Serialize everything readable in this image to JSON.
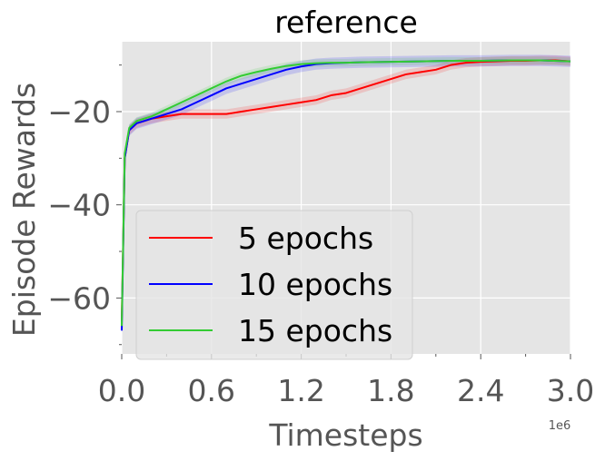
{
  "chart_data": {
    "type": "line",
    "title": "reference",
    "xlabel": "Timesteps",
    "ylabel": "Episode Rewards",
    "x_offset_label": "1e6",
    "xlim": [
      0,
      3.0
    ],
    "ylim": [
      -72,
      -5
    ],
    "xticks": [
      0.0,
      0.6,
      1.2,
      1.8,
      2.4,
      3.0
    ],
    "xtick_labels": [
      "0.0",
      "0.6",
      "1.2",
      "1.8",
      "2.4",
      "3.0"
    ],
    "yticks": [
      -60,
      -40,
      -20
    ],
    "ytick_labels": [
      "−60",
      "−40",
      "−20"
    ],
    "grid": true,
    "legend_position": "lower-left",
    "series": [
      {
        "name": "5 epochs",
        "color": "#ff0000",
        "band_color": "#ff0000",
        "x": [
          0,
          0.02,
          0.05,
          0.1,
          0.15,
          0.2,
          0.3,
          0.4,
          0.5,
          0.6,
          0.7,
          0.8,
          0.9,
          1.0,
          1.1,
          1.2,
          1.3,
          1.4,
          1.5,
          1.6,
          1.7,
          1.8,
          1.9,
          2.0,
          2.1,
          2.2,
          2.3,
          2.4,
          2.5,
          2.6,
          2.7,
          2.8,
          2.9,
          3.0
        ],
        "y": [
          -65,
          -30,
          -24,
          -22.5,
          -22,
          -21.5,
          -21,
          -20.5,
          -20.5,
          -20.5,
          -20.5,
          -20,
          -19.5,
          -19,
          -18.5,
          -18,
          -17.5,
          -16.5,
          -16,
          -15,
          -14,
          -13,
          -12,
          -11.5,
          -11,
          -10,
          -9.5,
          -9.3,
          -9.2,
          -9.1,
          -9.1,
          -9.0,
          -9.0,
          -9.2
        ],
        "band": 1.0
      },
      {
        "name": "10 epochs",
        "color": "#0000ff",
        "band_color": "#0000ff",
        "x": [
          0,
          0.02,
          0.05,
          0.1,
          0.15,
          0.2,
          0.3,
          0.4,
          0.5,
          0.6,
          0.7,
          0.8,
          0.9,
          1.0,
          1.1,
          1.2,
          1.3,
          1.4,
          1.5,
          1.6,
          1.8,
          2.0,
          2.2,
          2.4,
          2.6,
          2.8,
          3.0
        ],
        "y": [
          -67,
          -30,
          -24,
          -22.5,
          -22,
          -21.5,
          -20.5,
          -19.5,
          -18,
          -16.5,
          -15,
          -14,
          -13,
          -12,
          -11,
          -10.3,
          -9.8,
          -9.6,
          -9.5,
          -9.4,
          -9.3,
          -9.2,
          -9.1,
          -9.1,
          -9.0,
          -9.0,
          -9.2
        ],
        "band": 1.2
      },
      {
        "name": "15 epochs",
        "color": "#33cc33",
        "band_color": "#33cc33",
        "x": [
          0,
          0.02,
          0.05,
          0.1,
          0.15,
          0.2,
          0.3,
          0.4,
          0.5,
          0.6,
          0.7,
          0.8,
          0.9,
          1.0,
          1.1,
          1.2,
          1.3,
          1.4,
          1.5,
          1.6,
          1.8,
          2.0,
          2.2,
          2.4,
          2.6,
          2.8,
          3.0
        ],
        "y": [
          -66,
          -29,
          -23.5,
          -22,
          -21.5,
          -21,
          -19.5,
          -18,
          -16.5,
          -15,
          -13.5,
          -12.3,
          -11.5,
          -10.8,
          -10.2,
          -9.8,
          -9.6,
          -9.5,
          -9.5,
          -9.4,
          -9.3,
          -9.2,
          -9.1,
          -9.1,
          -9.0,
          -9.0,
          -9.2
        ],
        "band": 0.8
      }
    ]
  }
}
